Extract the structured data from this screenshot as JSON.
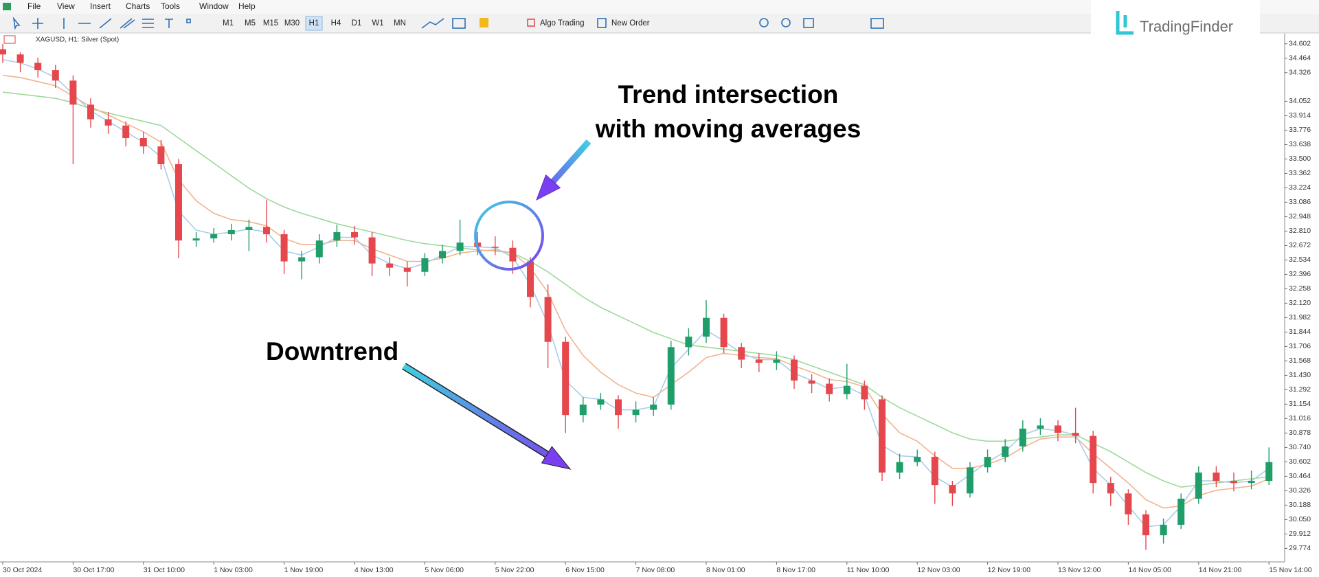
{
  "menu": [
    "File",
    "View",
    "Insert",
    "Charts",
    "Tools",
    "Window",
    "Help"
  ],
  "toolbar": {
    "timeframes": [
      "M1",
      "M5",
      "M15",
      "M30",
      "H1",
      "H4",
      "D1",
      "W1",
      "MN"
    ],
    "active": "H1",
    "algo_trading": "Algo Trading",
    "new_order": "New Order"
  },
  "brand": "TradingFinder",
  "chart_data": {
    "type": "candlestick",
    "symbol_label": "XAGUSD, H1:  Silver (Spot)",
    "up_color": "#1f9e6a",
    "down_color": "#e5474c",
    "candles": {
      "open": [
        34.55,
        34.5,
        34.42,
        34.35,
        34.25,
        34.02,
        33.88,
        33.82,
        33.7,
        33.62,
        33.45,
        32.72,
        32.74,
        32.78,
        32.82,
        32.85,
        32.78,
        32.52,
        32.56,
        32.72,
        32.8,
        32.75,
        32.5,
        32.46,
        32.42,
        32.55,
        32.62,
        32.7,
        32.66,
        32.65,
        32.52,
        32.18,
        31.75,
        31.05,
        31.15,
        31.2,
        31.05,
        31.1,
        31.15,
        31.7,
        31.8,
        31.98,
        31.7,
        31.58,
        31.55,
        31.58,
        31.38,
        31.35,
        31.25,
        31.33,
        31.2,
        30.5,
        30.6,
        30.65,
        30.38,
        30.3,
        30.55,
        30.65,
        30.75,
        30.92,
        30.95,
        30.88,
        30.85,
        30.4,
        30.3,
        30.1,
        29.9,
        30.0,
        30.25,
        30.5,
        30.42,
        30.4,
        30.42
      ],
      "high": [
        34.6,
        34.52,
        34.47,
        34.4,
        34.3,
        34.08,
        33.95,
        33.86,
        33.76,
        33.68,
        33.5,
        32.8,
        32.84,
        32.88,
        32.92,
        33.11,
        32.82,
        32.62,
        32.78,
        32.87,
        32.86,
        32.8,
        32.56,
        32.52,
        32.6,
        32.68,
        32.92,
        32.8,
        32.76,
        32.72,
        32.56,
        32.3,
        31.8,
        31.22,
        31.26,
        31.24,
        31.18,
        31.22,
        31.76,
        31.88,
        32.15,
        32.02,
        31.74,
        31.64,
        31.66,
        31.62,
        31.44,
        31.4,
        31.54,
        31.38,
        31.24,
        30.68,
        30.72,
        30.7,
        30.42,
        30.6,
        30.72,
        30.82,
        31.0,
        31.02,
        31.0,
        31.12,
        30.9,
        30.46,
        30.34,
        30.14,
        30.06,
        30.3,
        30.56,
        30.56,
        30.5,
        30.52,
        30.74
      ],
      "low": [
        34.42,
        34.33,
        34.28,
        34.18,
        33.45,
        33.8,
        33.74,
        33.62,
        33.55,
        33.4,
        32.55,
        32.66,
        32.7,
        32.72,
        32.62,
        32.7,
        32.4,
        32.35,
        32.5,
        32.66,
        32.68,
        32.38,
        32.38,
        32.28,
        32.38,
        32.5,
        32.58,
        32.58,
        32.58,
        32.4,
        32.08,
        31.5,
        30.88,
        30.98,
        31.1,
        30.92,
        30.98,
        31.04,
        31.1,
        31.62,
        31.74,
        31.64,
        31.5,
        31.46,
        31.48,
        31.3,
        31.26,
        31.18,
        31.2,
        31.1,
        30.42,
        30.44,
        30.56,
        30.2,
        30.18,
        30.26,
        30.5,
        30.6,
        30.7,
        30.86,
        30.8,
        30.78,
        30.3,
        30.18,
        30.0,
        29.76,
        29.82,
        29.96,
        30.2,
        30.36,
        30.32,
        30.34,
        30.38
      ],
      "close": [
        34.5,
        34.42,
        34.35,
        34.25,
        34.02,
        33.88,
        33.82,
        33.7,
        33.62,
        33.45,
        32.72,
        32.74,
        32.78,
        32.82,
        32.85,
        32.78,
        32.52,
        32.56,
        32.72,
        32.8,
        32.75,
        32.5,
        32.46,
        32.42,
        32.55,
        32.62,
        32.7,
        32.66,
        32.65,
        32.52,
        32.18,
        31.75,
        31.05,
        31.15,
        31.2,
        31.05,
        31.1,
        31.15,
        31.7,
        31.8,
        31.98,
        31.7,
        31.58,
        31.55,
        31.58,
        31.38,
        31.35,
        31.25,
        31.33,
        31.2,
        30.5,
        30.6,
        30.65,
        30.38,
        30.3,
        30.55,
        30.65,
        30.75,
        30.92,
        30.95,
        30.88,
        30.85,
        30.4,
        30.3,
        30.1,
        29.9,
        30.0,
        30.25,
        30.5,
        30.42,
        30.4,
        30.42,
        30.6
      ]
    },
    "series": [
      {
        "color": "#9ed99a",
        "values": [
          34.14,
          34.12,
          34.1,
          34.08,
          34.04,
          33.98,
          33.94,
          33.9,
          33.86,
          33.82,
          33.7,
          33.58,
          33.46,
          33.34,
          33.22,
          33.12,
          33.04,
          32.98,
          32.93,
          32.88,
          32.84,
          32.8,
          32.76,
          32.72,
          32.69,
          32.67,
          32.65,
          32.63,
          32.62,
          32.6,
          32.52,
          32.42,
          32.3,
          32.18,
          32.08,
          32.0,
          31.92,
          31.84,
          31.78,
          31.72,
          31.7,
          31.68,
          31.66,
          31.64,
          31.62,
          31.58,
          31.52,
          31.46,
          31.4,
          31.34,
          31.22,
          31.12,
          31.04,
          30.96,
          30.88,
          30.82,
          30.8,
          30.8,
          30.82,
          30.84,
          30.86,
          30.86,
          30.78,
          30.7,
          30.6,
          30.5,
          30.42,
          30.36,
          30.38,
          30.4,
          30.42,
          30.44,
          30.46
        ]
      },
      {
        "color": "#f3b28f",
        "values": [
          34.3,
          34.28,
          34.24,
          34.2,
          34.1,
          34.0,
          33.92,
          33.84,
          33.76,
          33.66,
          33.3,
          33.1,
          32.98,
          32.92,
          32.9,
          32.86,
          32.74,
          32.68,
          32.68,
          32.72,
          32.72,
          32.64,
          32.58,
          32.52,
          32.52,
          32.55,
          32.6,
          32.62,
          32.63,
          32.6,
          32.46,
          32.22,
          31.86,
          31.62,
          31.46,
          31.34,
          31.26,
          31.22,
          31.34,
          31.46,
          31.6,
          31.64,
          31.62,
          31.6,
          31.59,
          31.52,
          31.46,
          31.39,
          31.37,
          31.32,
          31.06,
          30.88,
          30.8,
          30.66,
          30.54,
          30.54,
          30.58,
          30.64,
          30.74,
          30.82,
          30.84,
          30.84,
          30.68,
          30.54,
          30.4,
          30.24,
          30.16,
          30.18,
          30.28,
          30.33,
          30.35,
          30.37,
          30.44
        ]
      },
      {
        "color": "#a9cde9",
        "values": [
          34.45,
          34.42,
          34.36,
          34.28,
          34.12,
          33.96,
          33.86,
          33.76,
          33.66,
          33.52,
          33.0,
          32.82,
          32.78,
          32.8,
          32.83,
          32.8,
          32.62,
          32.58,
          32.66,
          32.75,
          32.75,
          32.58,
          32.5,
          32.45,
          32.5,
          32.58,
          32.66,
          32.66,
          32.65,
          32.56,
          32.3,
          31.92,
          31.38,
          31.22,
          31.2,
          31.1,
          31.1,
          31.13,
          31.5,
          31.68,
          31.86,
          31.76,
          31.64,
          31.58,
          31.58,
          31.45,
          31.38,
          31.3,
          31.32,
          31.24,
          30.76,
          30.66,
          30.65,
          30.46,
          30.36,
          30.48,
          30.6,
          30.7,
          30.86,
          30.92,
          30.9,
          30.86,
          30.54,
          30.38,
          30.18,
          29.98,
          30.0,
          30.18,
          30.42,
          30.42,
          30.4,
          30.42,
          30.54
        ]
      }
    ],
    "ylim": [
      29.645,
      34.699
    ],
    "yticks": [
      34.602,
      34.464,
      34.326,
      34.052,
      33.914,
      33.776,
      33.638,
      {
        "value": 33.5,
        "label": "33.500"
      },
      33.362,
      33.224,
      33.086,
      32.948,
      {
        "value": 32.81,
        "label": "32.810"
      },
      32.672,
      32.534,
      32.396,
      32.258,
      {
        "value": 32.12,
        "label": "32.120"
      },
      31.982,
      31.844,
      31.706,
      31.568,
      {
        "value": 31.43,
        "label": "31.430"
      },
      31.292,
      31.154,
      31.016,
      30.878,
      {
        "value": 30.74,
        "label": "30.740"
      },
      30.602,
      30.464,
      30.326,
      30.188,
      {
        "value": 30.05,
        "label": "30.050"
      },
      29.912,
      29.774
    ],
    "xticks": [
      {
        "value": 0,
        "label": "30 Oct 2024"
      },
      {
        "value": 4,
        "label": "30 Oct 17:00"
      },
      {
        "value": 8,
        "label": "31 Oct 10:00"
      },
      {
        "value": 12,
        "label": "1 Nov 03:00"
      },
      {
        "value": 16,
        "label": "1 Nov 19:00"
      },
      {
        "value": 20,
        "label": "4 Nov 13:00"
      },
      {
        "value": 24,
        "label": "5 Nov 06:00"
      },
      {
        "value": 28,
        "label": "5 Nov 22:00"
      },
      {
        "value": 32,
        "label": "6 Nov 15:00"
      },
      {
        "value": 36,
        "label": "7 Nov 08:00"
      },
      {
        "value": 40,
        "label": "8 Nov 01:00"
      },
      {
        "value": 44,
        "label": "8 Nov 17:00"
      },
      {
        "value": 48,
        "label": "11 Nov 10:00"
      },
      {
        "value": 52,
        "label": "12 Nov 03:00"
      },
      {
        "value": 56,
        "label": "12 Nov 19:00"
      },
      {
        "value": 60,
        "label": "13 Nov 12:00"
      },
      {
        "value": 64,
        "label": "14 Nov 05:00"
      },
      {
        "value": 68,
        "label": "14 Nov 21:00"
      },
      {
        "value": 72,
        "label": "15 Nov 14:00"
      }
    ],
    "annotations": {
      "trend": [
        "Trend intersection",
        "with moving averages"
      ],
      "downtrend": "Downtrend"
    }
  }
}
